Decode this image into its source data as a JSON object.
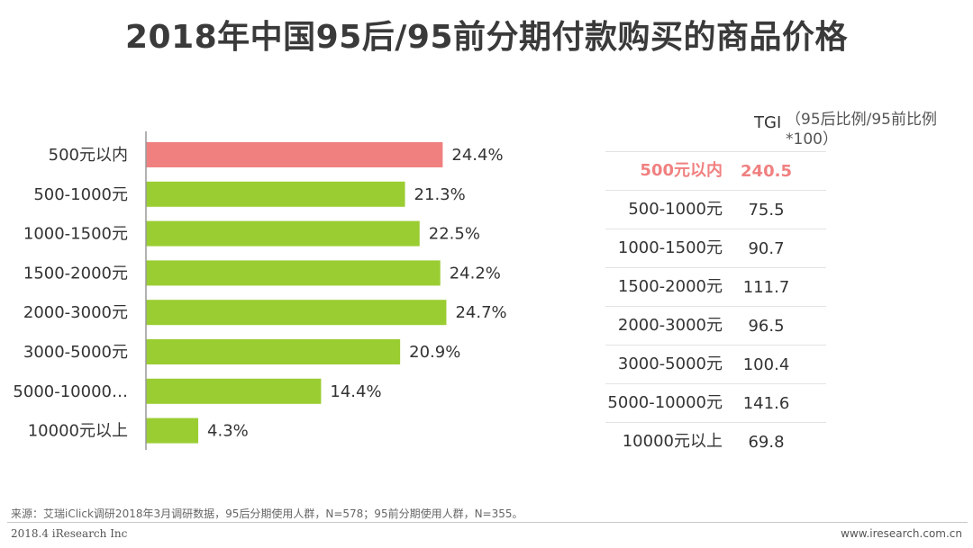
{
  "title": "2018年中国95后/95前分期付款购买的商品价格",
  "chart_data": {
    "type": "bar",
    "orientation": "horizontal",
    "categories": [
      "500元以内",
      "500-1000元",
      "1000-1500元",
      "1500-2000元",
      "2000-3000元",
      "3000-5000元",
      "5000-10000…",
      "10000元以上"
    ],
    "values": [
      24.4,
      21.3,
      22.5,
      24.2,
      24.7,
      20.9,
      14.4,
      4.3
    ],
    "value_labels": [
      "24.4%",
      "21.3%",
      "22.5%",
      "24.2%",
      "24.7%",
      "20.9%",
      "14.4%",
      "4.3%"
    ],
    "unit": "%",
    "xlim": [
      0,
      25
    ],
    "highlight_index": 0,
    "colors": {
      "highlight": "#f08080",
      "default": "#9acd32",
      "axis": "#999999"
    }
  },
  "tgi": {
    "header": "TGI",
    "note": "（95后比例/95前比例*100）",
    "rows": [
      {
        "category": "500元以内",
        "value": "240.5"
      },
      {
        "category": "500-1000元",
        "value": "75.5"
      },
      {
        "category": "1000-1500元",
        "value": "90.7"
      },
      {
        "category": "1500-2000元",
        "value": "111.7"
      },
      {
        "category": "2000-3000元",
        "value": "96.5"
      },
      {
        "category": "3000-5000元",
        "value": "100.4"
      },
      {
        "category": "5000-10000元",
        "value": "141.6"
      },
      {
        "category": "10000元以上",
        "value": "69.8"
      }
    ]
  },
  "footer": {
    "source": "来源：艾瑞iClick调研2018年3月调研数据，95后分期使用人群，N=578；95前分期使用人群，N=355。",
    "left": "2018.4 iResearch Inc",
    "right": "www.iresearch.com.cn"
  }
}
